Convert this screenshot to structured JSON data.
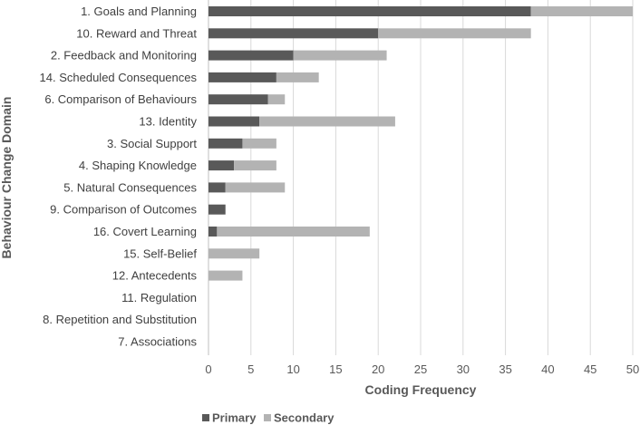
{
  "chart_data": {
    "type": "bar",
    "orientation": "horizontal",
    "stacked": true,
    "title": "",
    "xlabel": "Coding Frequency",
    "ylabel": "Behaviour Change Domain",
    "xlim": [
      0,
      50
    ],
    "xticks": [
      0,
      5,
      10,
      15,
      20,
      25,
      30,
      35,
      40,
      45,
      50
    ],
    "grid": true,
    "legend_position": "bottom",
    "categories": [
      "1. Goals and Planning",
      "10. Reward and Threat",
      "2. Feedback and Monitoring",
      "14. Scheduled Consequences",
      "6. Comparison of Behaviours",
      "13. Identity",
      "3. Social Support",
      "4. Shaping Knowledge",
      "5. Natural Consequences",
      "9. Comparison of Outcomes",
      "16. Covert Learning",
      "15. Self-Belief",
      "12. Antecedents",
      "11. Regulation",
      "8. Repetition and Substitution",
      "7. Associations"
    ],
    "series": [
      {
        "name": "Primary",
        "color": "#595959",
        "values": [
          38,
          20,
          10,
          8,
          7,
          6,
          4,
          3,
          2,
          2,
          1,
          0,
          0,
          0,
          0,
          0
        ]
      },
      {
        "name": "Secondary",
        "color": "#b3b3b3",
        "values": [
          12,
          18,
          11,
          5,
          2,
          16,
          4,
          5,
          7,
          0,
          18,
          6,
          4,
          0,
          0,
          0
        ]
      }
    ]
  }
}
